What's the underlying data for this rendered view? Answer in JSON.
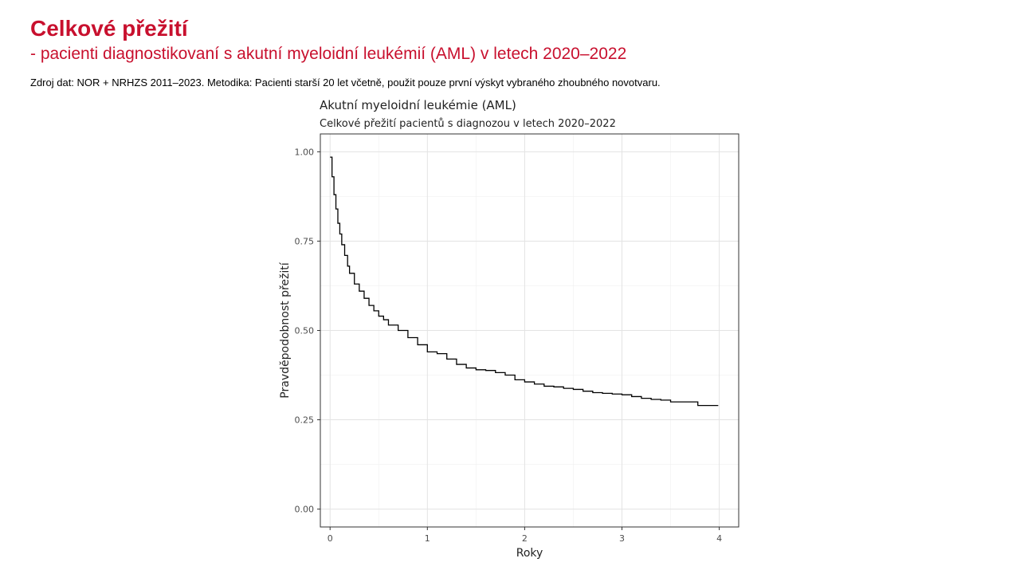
{
  "slide": {
    "title": "Celkové přežití",
    "subtitle": "- pacienti diagnostikovaní s akutní myeloidní leukémií (AML) v letech 2020–2022",
    "source": "Zdroj dat: NOR + NRHZS 2011–2023. Metodika: Pacienti starší 20 let včetně, použit pouze první výskyt vybraného zhoubného novotvaru.",
    "title_color": "#c8102e"
  },
  "chart_data": {
    "type": "line",
    "title": "Akutní myeloidní leukémie (AML)",
    "subtitle": "Celkové přežití pacientů s diagnozou v letech 2020–2022",
    "xlabel": "Roky",
    "ylabel": "Pravděpodobnost přežití",
    "xlim": [
      -0.1,
      4.2
    ],
    "ylim": [
      -0.05,
      1.05
    ],
    "x_ticks": [
      0,
      1,
      2,
      3,
      4
    ],
    "x_tick_labels": [
      "0",
      "1",
      "2",
      "3",
      "4"
    ],
    "y_ticks": [
      0.0,
      0.25,
      0.5,
      0.75,
      1.0
    ],
    "y_tick_labels": [
      "0.00",
      "0.25",
      "0.50",
      "0.75",
      "1.00"
    ],
    "grid": true,
    "step": true,
    "line_color": "#000000",
    "series": [
      {
        "x": [
          0,
          0.02,
          0.04,
          0.06,
          0.08,
          0.1,
          0.12,
          0.15,
          0.18,
          0.2,
          0.25,
          0.3,
          0.35,
          0.4,
          0.45,
          0.5,
          0.55,
          0.6,
          0.7,
          0.8,
          0.9,
          1.0,
          1.1,
          1.2,
          1.3,
          1.4,
          1.5,
          1.6,
          1.7,
          1.8,
          1.9,
          2.0,
          2.1,
          2.2,
          2.3,
          2.4,
          2.5,
          2.6,
          2.7,
          2.8,
          2.9,
          3.0,
          3.1,
          3.2,
          3.3,
          3.4,
          3.5,
          3.6,
          3.7,
          3.78,
          3.85,
          3.99
        ],
        "y": [
          0.985,
          0.93,
          0.88,
          0.84,
          0.8,
          0.77,
          0.74,
          0.71,
          0.68,
          0.66,
          0.63,
          0.61,
          0.59,
          0.57,
          0.555,
          0.54,
          0.53,
          0.515,
          0.5,
          0.48,
          0.46,
          0.44,
          0.435,
          0.42,
          0.405,
          0.395,
          0.39,
          0.388,
          0.382,
          0.375,
          0.362,
          0.356,
          0.35,
          0.344,
          0.342,
          0.338,
          0.335,
          0.33,
          0.326,
          0.324,
          0.322,
          0.32,
          0.315,
          0.31,
          0.307,
          0.305,
          0.3,
          0.3,
          0.3,
          0.29,
          0.29,
          0.29
        ]
      }
    ]
  }
}
